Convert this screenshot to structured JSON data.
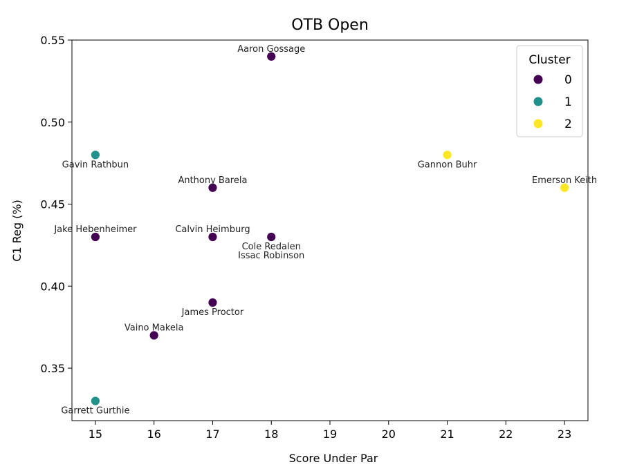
{
  "chart_data": {
    "type": "scatter",
    "title": "OTB Open",
    "xlabel": "Score Under Par",
    "ylabel": "C1 Reg (%)",
    "xlim": [
      14.6,
      23.4
    ],
    "ylim": [
      0.318,
      0.55
    ],
    "xticks": [
      15,
      16,
      17,
      18,
      19,
      20,
      21,
      22,
      23
    ],
    "yticks": [
      0.35,
      0.4,
      0.45,
      0.5,
      0.55
    ],
    "grid": false,
    "legend": {
      "title": "Cluster",
      "placement": "top-right",
      "entries": [
        {
          "label": "0",
          "color": "#440154"
        },
        {
          "label": "1",
          "color": "#21918c"
        },
        {
          "label": "2",
          "color": "#fde725"
        }
      ]
    },
    "points": [
      {
        "name": "Aaron Gossage",
        "x": 18,
        "y": 0.54,
        "cluster": 0,
        "label_pos": "above"
      },
      {
        "name": "Gavin Rathbun",
        "x": 15,
        "y": 0.48,
        "cluster": 1,
        "label_pos": "below"
      },
      {
        "name": "Gannon Buhr",
        "x": 21,
        "y": 0.48,
        "cluster": 2,
        "label_pos": "below"
      },
      {
        "name": "Anthony Barela",
        "x": 17,
        "y": 0.46,
        "cluster": 0,
        "label_pos": "above"
      },
      {
        "name": "Emerson Keith",
        "x": 23,
        "y": 0.46,
        "cluster": 2,
        "label_pos": "above"
      },
      {
        "name": "Jake Hebenheimer",
        "x": 15,
        "y": 0.43,
        "cluster": 0,
        "label_pos": "above"
      },
      {
        "name": "Calvin Heimburg",
        "x": 17,
        "y": 0.43,
        "cluster": 0,
        "label_pos": "above"
      },
      {
        "name": "Cole Redalen",
        "x": 18,
        "y": 0.43,
        "cluster": 0,
        "label_pos": "below"
      },
      {
        "name": "Issac Robinson",
        "x": 18,
        "y": 0.43,
        "cluster": 0,
        "label_pos": "below2"
      },
      {
        "name": "James Proctor",
        "x": 17,
        "y": 0.39,
        "cluster": 0,
        "label_pos": "below"
      },
      {
        "name": "Vaino Makela",
        "x": 16,
        "y": 0.37,
        "cluster": 0,
        "label_pos": "above"
      },
      {
        "name": "Garrett Gurthie",
        "x": 15,
        "y": 0.33,
        "cluster": 1,
        "label_pos": "below"
      }
    ]
  }
}
